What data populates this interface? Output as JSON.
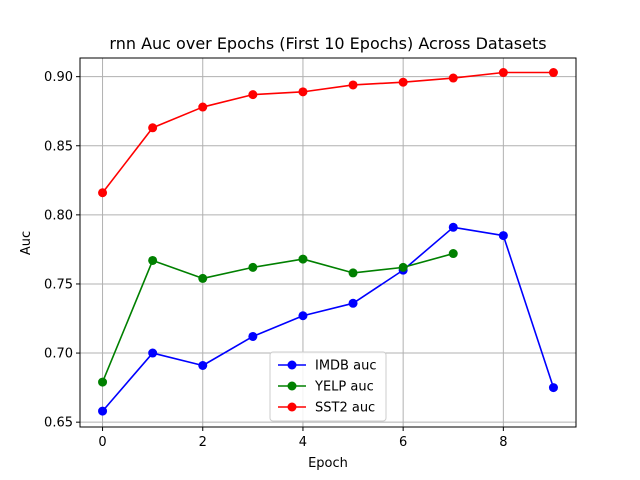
{
  "chart_data": {
    "type": "line",
    "title": "rnn Auc over Epochs (First 10 Epochs) Across Datasets",
    "xlabel": "Epoch",
    "ylabel": "Auc",
    "xlim": [
      -0.45,
      9.45
    ],
    "ylim": [
      0.6465,
      0.9135
    ],
    "xticks": [
      0,
      2,
      4,
      6,
      8
    ],
    "yticks": [
      0.65,
      0.7,
      0.75,
      0.8,
      0.85,
      0.9
    ],
    "xtick_labels": [
      "0",
      "2",
      "4",
      "6",
      "8"
    ],
    "ytick_labels": [
      "0.65",
      "0.70",
      "0.75",
      "0.80",
      "0.85",
      "0.90"
    ],
    "grid": true,
    "legend_position": "lower center",
    "series": [
      {
        "name": "IMDB auc",
        "color": "#0000ff",
        "x": [
          0,
          1,
          2,
          3,
          4,
          5,
          6,
          7,
          8,
          9
        ],
        "values": [
          0.658,
          0.7,
          0.691,
          0.712,
          0.727,
          0.736,
          0.76,
          0.791,
          0.785,
          0.675
        ]
      },
      {
        "name": "YELP auc",
        "color": "#008000",
        "x": [
          0,
          1,
          2,
          3,
          4,
          5,
          6,
          7
        ],
        "values": [
          0.679,
          0.767,
          0.754,
          0.762,
          0.768,
          0.758,
          0.762,
          0.772
        ]
      },
      {
        "name": "SST2 auc",
        "color": "#ff0000",
        "x": [
          0,
          1,
          2,
          3,
          4,
          5,
          6,
          7,
          8,
          9
        ],
        "values": [
          0.816,
          0.863,
          0.878,
          0.887,
          0.889,
          0.894,
          0.896,
          0.899,
          0.903,
          0.903
        ]
      }
    ]
  }
}
